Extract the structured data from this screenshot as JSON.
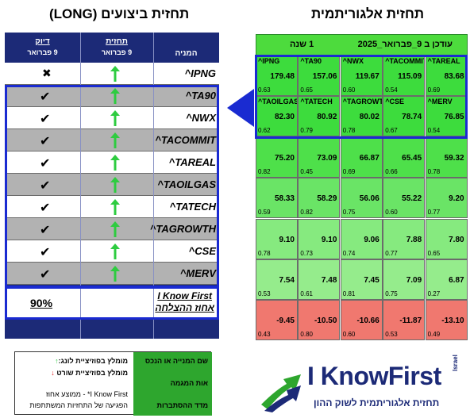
{
  "titles": {
    "left": "תחזית ביצועים (LONG)",
    "right": "תחזית אלגוריתמית"
  },
  "left_table": {
    "headers": {
      "accuracy_l1": "דיוק",
      "accuracy_l2": "9 פברואר",
      "forecast_l1": "תחזית",
      "forecast_l2": "9 פברואר",
      "company": "המניה"
    },
    "rows": [
      {
        "name": "^IPNG",
        "result": "✖",
        "type": "cross"
      },
      {
        "name": "^TA90",
        "result": "✔",
        "type": "check"
      },
      {
        "name": "^NWX",
        "result": "✔",
        "type": "check"
      },
      {
        "name": "^TACOMMIT",
        "result": "✔",
        "type": "check"
      },
      {
        "name": "^TAREAL",
        "result": "✔",
        "type": "check"
      },
      {
        "name": "^TAOILGAS",
        "result": "✔",
        "type": "check"
      },
      {
        "name": "^TATECH",
        "result": "✔",
        "type": "check"
      },
      {
        "name": "^TAGROWTH",
        "result": "✔",
        "type": "check"
      },
      {
        "name": "^CSE",
        "result": "✔",
        "type": "check"
      },
      {
        "name": "^MERV",
        "result": "✔",
        "type": "check"
      }
    ],
    "summary": {
      "accuracy": "90%",
      "ikf_line1": "I Know First",
      "ikf_line2": "אחוז ההצלחה"
    }
  },
  "grid": {
    "header_date": "עודכן ב 9_פברואר_2025",
    "header_horizon": "1 שנה",
    "cells": [
      {
        "ticker": "^IPNG",
        "signal": "179.48",
        "pred": "0.63"
      },
      {
        "ticker": "^TA90",
        "signal": "157.06",
        "pred": "0.65"
      },
      {
        "ticker": "^NWX",
        "signal": "119.67",
        "pred": "0.60"
      },
      {
        "ticker": "^TACOMMIT",
        "signal": "115.09",
        "pred": "0.54"
      },
      {
        "ticker": "^TAREAL",
        "signal": "83.68",
        "pred": "0.69"
      },
      {
        "ticker": "^TAOILGAS",
        "signal": "82.30",
        "pred": "0.62"
      },
      {
        "ticker": "^TATECH",
        "signal": "80.92",
        "pred": "0.79"
      },
      {
        "ticker": "^TAGROWTH",
        "signal": "80.02",
        "pred": "0.78"
      },
      {
        "ticker": "^CSE",
        "signal": "78.74",
        "pred": "0.67"
      },
      {
        "ticker": "^MERV",
        "signal": "76.85",
        "pred": "0.54"
      },
      {
        "ticker": "",
        "signal": "75.20",
        "pred": "0.82"
      },
      {
        "ticker": "",
        "signal": "73.09",
        "pred": "0.45"
      },
      {
        "ticker": "",
        "signal": "66.87",
        "pred": "0.69"
      },
      {
        "ticker": "",
        "signal": "65.45",
        "pred": "0.66"
      },
      {
        "ticker": "",
        "signal": "59.32",
        "pred": "0.78"
      },
      {
        "ticker": "",
        "signal": "58.33",
        "pred": "0.59"
      },
      {
        "ticker": "",
        "signal": "58.29",
        "pred": "0.82"
      },
      {
        "ticker": "",
        "signal": "56.06",
        "pred": "0.75"
      },
      {
        "ticker": "",
        "signal": "55.22",
        "pred": "0.60"
      },
      {
        "ticker": "",
        "signal": "9.20",
        "pred": "0.77"
      },
      {
        "ticker": "",
        "signal": "9.10",
        "pred": "0.78"
      },
      {
        "ticker": "",
        "signal": "9.10",
        "pred": "0.73"
      },
      {
        "ticker": "",
        "signal": "9.06",
        "pred": "0.74"
      },
      {
        "ticker": "",
        "signal": "7.88",
        "pred": "0.77"
      },
      {
        "ticker": "",
        "signal": "7.80",
        "pred": "0.65"
      },
      {
        "ticker": "",
        "signal": "7.54",
        "pred": "0.53"
      },
      {
        "ticker": "",
        "signal": "7.48",
        "pred": "0.61"
      },
      {
        "ticker": "",
        "signal": "7.45",
        "pred": "0.81"
      },
      {
        "ticker": "",
        "signal": "7.09",
        "pred": "0.75"
      },
      {
        "ticker": "",
        "signal": "6.87",
        "pred": "0.27"
      },
      {
        "ticker": "",
        "signal": "-9.45",
        "pred": "0.43"
      },
      {
        "ticker": "",
        "signal": "-10.50",
        "pred": "0.80"
      },
      {
        "ticker": "",
        "signal": "-10.66",
        "pred": "0.60"
      },
      {
        "ticker": "",
        "signal": "-11.87",
        "pred": "0.53"
      },
      {
        "ticker": "",
        "signal": "-13.10",
        "pred": "0.49"
      }
    ],
    "row_colors": [
      "#3ddc3d",
      "#3ddc3d",
      "#4ee04a",
      "#6ae466",
      "#86ea7f",
      "#95ec8c",
      "#f0786f"
    ]
  },
  "legend": {
    "long": "מומלץ בפוזיציית לונג:",
    "short": "מומלץ בפוזיציית שורט",
    "ikf_note": "I Know First* - ממוצע אחוז",
    "ikf_note2": "הפגיעה של התחזיות המשתתפות",
    "g1": "שם המנייה או הנכס",
    "g2": "אות המגמה",
    "g3": "מדד ההסתברות",
    "up_arrow": "↑",
    "down_arrow": "↓"
  },
  "logo": {
    "brand": "I KnowFirst",
    "country": "Israel",
    "tagline": "תחזית אלגוריתמית לשוק ההון"
  },
  "colors": {
    "navy": "#1c2a77",
    "highlight_blue": "#1a2bd1",
    "up_green": "#2ecc40",
    "down_red": "#e02020"
  }
}
